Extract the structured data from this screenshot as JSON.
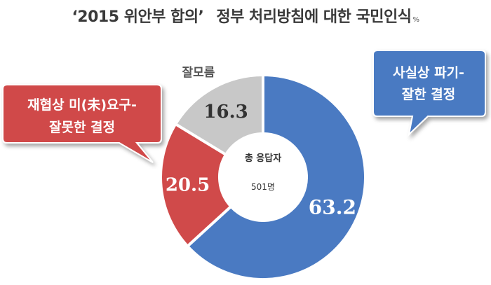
{
  "title": {
    "quoted": "‘2015 위안부 합의’",
    "main": "정부 처리방침에 대한 국민인식",
    "unit": "%"
  },
  "chart_data": {
    "type": "pie",
    "variant": "donut",
    "categories": [
      "사실상 파기-잘한 결정",
      "재협상 미(未)요구-잘못한 결정",
      "잘모름"
    ],
    "values": [
      63.2,
      20.5,
      16.3
    ],
    "value_labels": [
      "63.2",
      "20.5",
      "16.3"
    ],
    "colors": [
      "#4a7ac2",
      "#d04a4a",
      "#c8c8c8"
    ],
    "legend_placement": "callouts",
    "center_label": {
      "line1": "총 응답자",
      "line2": "501명"
    }
  },
  "callouts": {
    "positive": {
      "line1": "사실상 파기-",
      "line2": "잘한 결정",
      "color": "#4a7ac2"
    },
    "negative": {
      "line1": "재협상 미(未)요구-",
      "line2": "잘못한 결정",
      "color": "#d04a4a"
    },
    "unknown": {
      "label": "잘모름"
    }
  }
}
